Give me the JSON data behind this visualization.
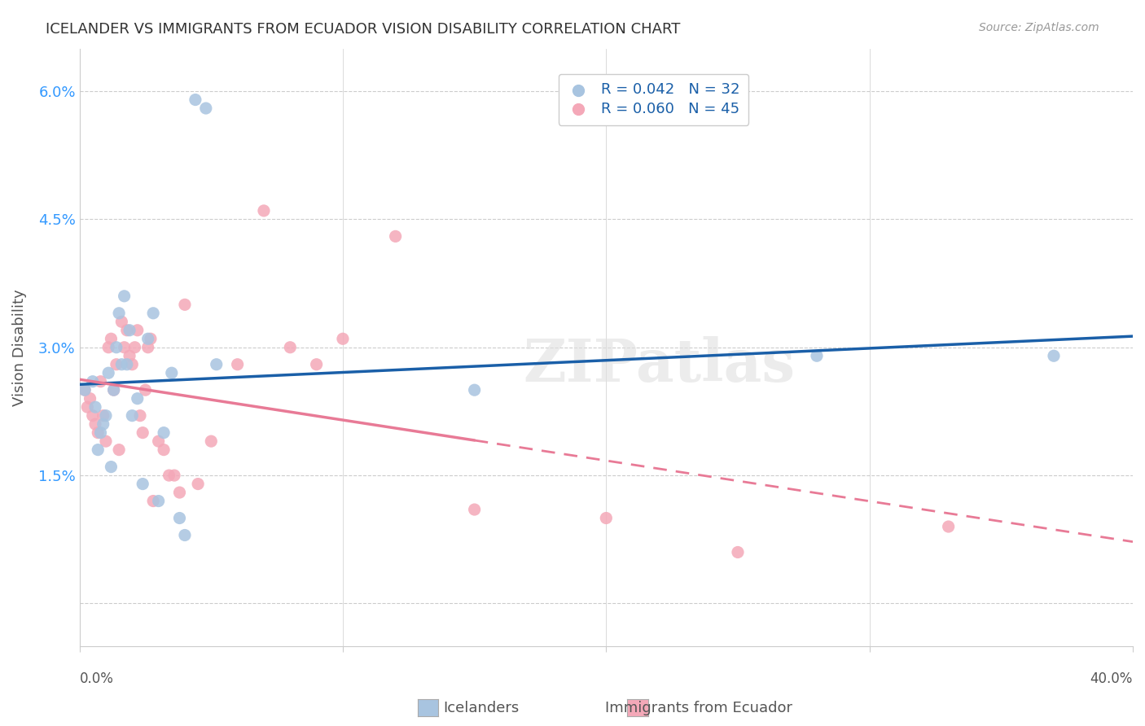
{
  "title": "ICELANDER VS IMMIGRANTS FROM ECUADOR VISION DISABILITY CORRELATION CHART",
  "source": "Source: ZipAtlas.com",
  "ylabel": "Vision Disability",
  "yticks": [
    0.0,
    0.015,
    0.03,
    0.045,
    0.06
  ],
  "ytick_labels": [
    "",
    "1.5%",
    "3.0%",
    "4.5%",
    "6.0%"
  ],
  "xlim": [
    0.0,
    0.4
  ],
  "ylim": [
    -0.005,
    0.065
  ],
  "watermark": "ZIPatlas",
  "icelanders_R": 0.042,
  "icelanders_N": 32,
  "ecuador_R": 0.06,
  "ecuador_N": 45,
  "icelanders_color": "#a8c4e0",
  "ecuador_color": "#f4a8b8",
  "icelanders_line_color": "#1a5fa8",
  "ecuador_line_color": "#e87a96",
  "icelanders_x": [
    0.002,
    0.005,
    0.006,
    0.007,
    0.008,
    0.009,
    0.01,
    0.011,
    0.012,
    0.013,
    0.014,
    0.015,
    0.016,
    0.017,
    0.018,
    0.019,
    0.02,
    0.022,
    0.024,
    0.026,
    0.028,
    0.03,
    0.032,
    0.035,
    0.038,
    0.04,
    0.044,
    0.048,
    0.052,
    0.15,
    0.28,
    0.37
  ],
  "icelanders_y": [
    0.025,
    0.026,
    0.023,
    0.018,
    0.02,
    0.021,
    0.022,
    0.027,
    0.016,
    0.025,
    0.03,
    0.034,
    0.028,
    0.036,
    0.028,
    0.032,
    0.022,
    0.024,
    0.014,
    0.031,
    0.034,
    0.012,
    0.02,
    0.027,
    0.01,
    0.008,
    0.059,
    0.058,
    0.028,
    0.025,
    0.029,
    0.029
  ],
  "ecuador_x": [
    0.002,
    0.003,
    0.004,
    0.005,
    0.006,
    0.007,
    0.008,
    0.009,
    0.01,
    0.011,
    0.012,
    0.013,
    0.014,
    0.015,
    0.016,
    0.017,
    0.018,
    0.019,
    0.02,
    0.021,
    0.022,
    0.023,
    0.024,
    0.025,
    0.026,
    0.027,
    0.028,
    0.03,
    0.032,
    0.034,
    0.036,
    0.038,
    0.04,
    0.045,
    0.05,
    0.06,
    0.07,
    0.08,
    0.09,
    0.1,
    0.12,
    0.15,
    0.2,
    0.25,
    0.33
  ],
  "ecuador_y": [
    0.025,
    0.023,
    0.024,
    0.022,
    0.021,
    0.02,
    0.026,
    0.022,
    0.019,
    0.03,
    0.031,
    0.025,
    0.028,
    0.018,
    0.033,
    0.03,
    0.032,
    0.029,
    0.028,
    0.03,
    0.032,
    0.022,
    0.02,
    0.025,
    0.03,
    0.031,
    0.012,
    0.019,
    0.018,
    0.015,
    0.015,
    0.013,
    0.035,
    0.014,
    0.019,
    0.028,
    0.046,
    0.03,
    0.028,
    0.031,
    0.043,
    0.011,
    0.01,
    0.006,
    0.009
  ]
}
